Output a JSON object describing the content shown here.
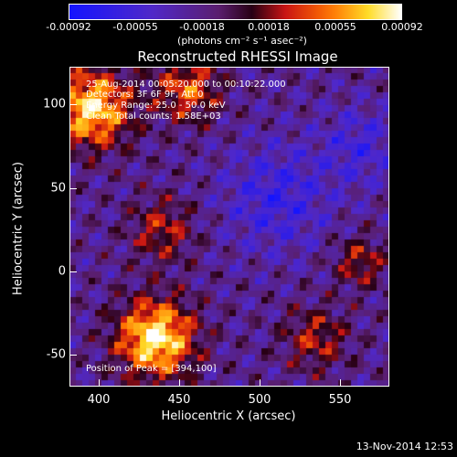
{
  "colorbar": {
    "ticks": [
      "-0.00092",
      "-0.00055",
      "-0.00018",
      "0.00018",
      "0.00055",
      "0.00092"
    ],
    "units": "(photons cm⁻² s⁻¹ asec⁻²)"
  },
  "title": "Reconstructed RHESSI Image",
  "overlay": {
    "line1": "25-Aug-2014 00:05:20.000 to 00:10:22.000",
    "line2": "Detectors: 3F 6F 9F, Att 0",
    "line3": "Energy Range: 25.0 - 50.0 keV",
    "line4": "Clean    Total counts: 1.58E+03",
    "peak": "Position of Peak = [394,100]"
  },
  "axes": {
    "xlabel": "Heliocentric X (arcsec)",
    "ylabel": "Heliocentric Y (arcsec)",
    "xticks": [
      "400",
      "450",
      "500",
      "550"
    ],
    "yticks": [
      "100",
      "50",
      "0",
      "-50"
    ],
    "xlim": [
      385,
      575
    ],
    "ylim": [
      -70,
      120
    ]
  },
  "timestamp": "13-Nov-2014 12:53"
}
